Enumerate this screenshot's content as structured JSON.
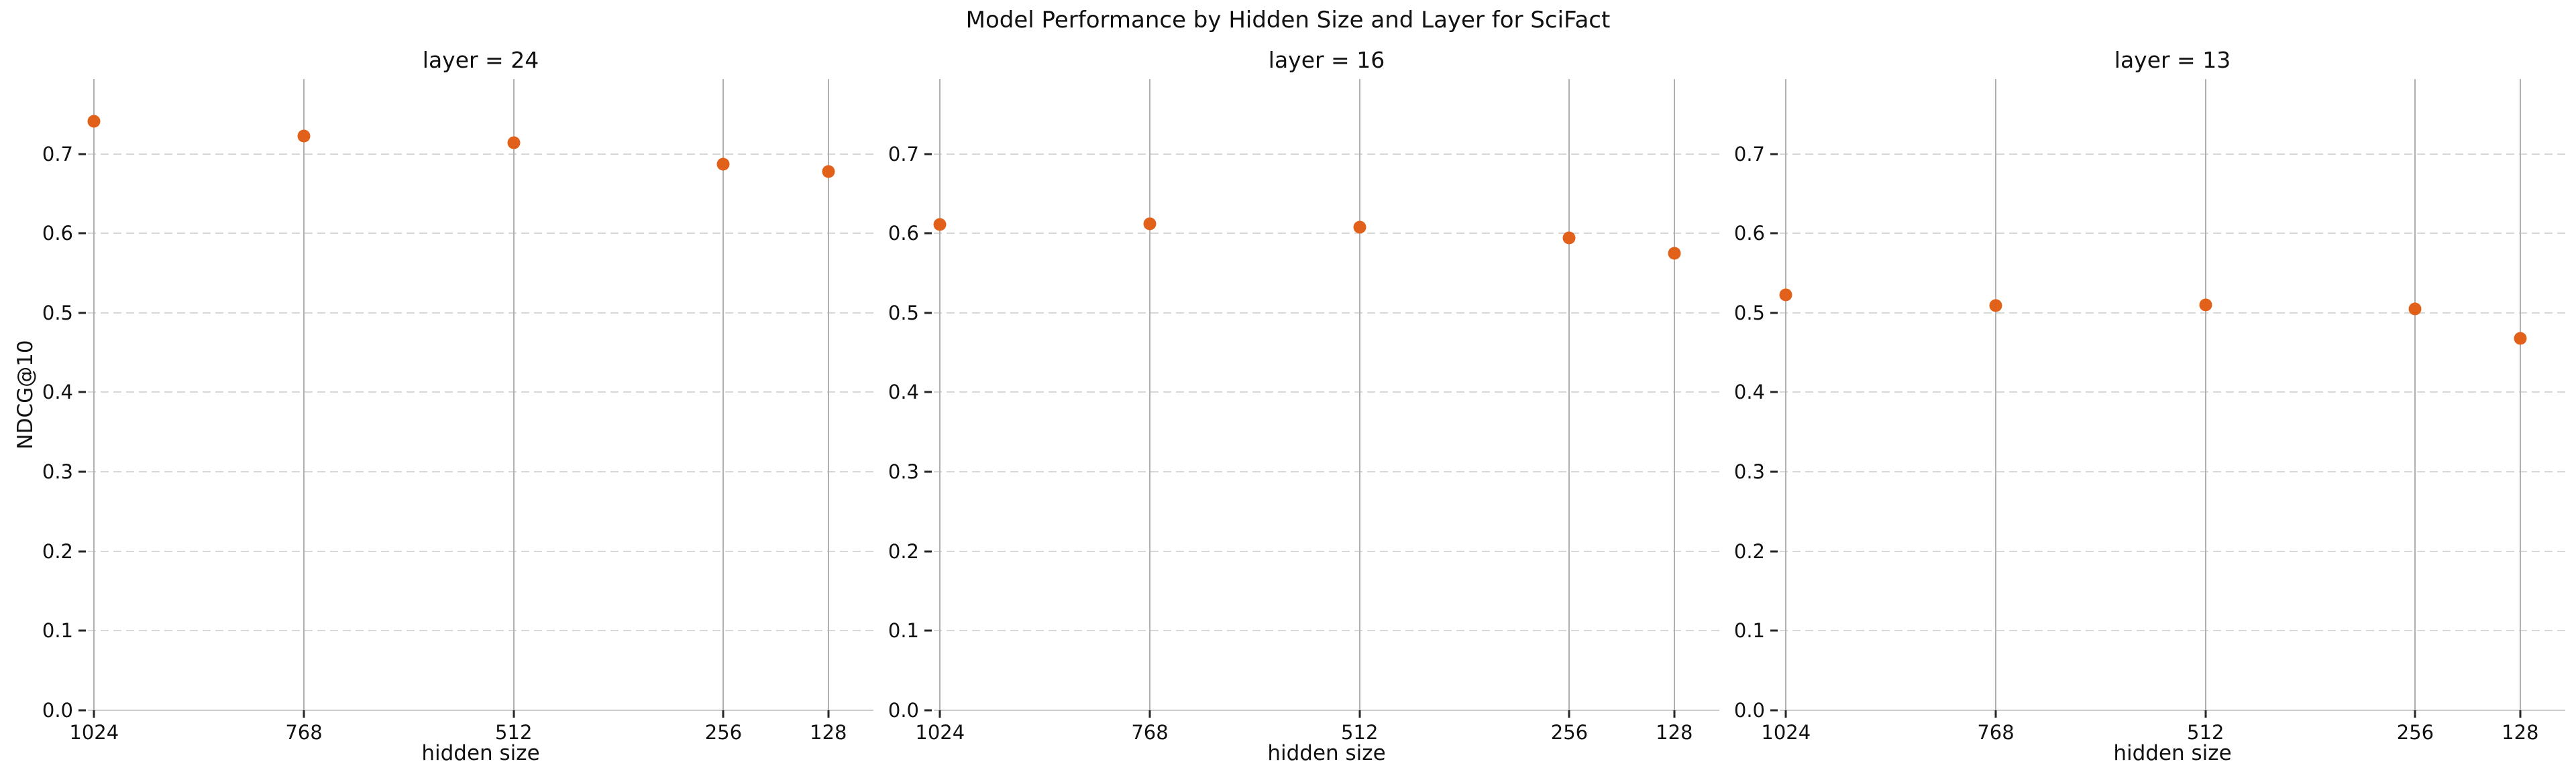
{
  "chart_data": {
    "type": "scatter",
    "title": "Model Performance by Hidden Size and Layer for SciFact",
    "xlabel": "hidden size",
    "ylabel": "NDCG@10",
    "facet_variable": "layer",
    "x": [
      1024,
      768,
      512,
      256,
      128
    ],
    "x_tick_labels": [
      "1024",
      "768",
      "512",
      "256",
      "128"
    ],
    "y_tick_labels": [
      "0.0",
      "0.1",
      "0.2",
      "0.3",
      "0.4",
      "0.5",
      "0.6",
      "0.7"
    ],
    "y_ticks": [
      0.0,
      0.1,
      0.2,
      0.3,
      0.4,
      0.5,
      0.6,
      0.7
    ],
    "xlim": [
      1031.6,
      73.0
    ],
    "ylim": [
      0.0,
      0.794
    ],
    "x_axis_inverted": true,
    "legend": "none",
    "grid": {
      "vertical": "solid",
      "horizontal": "dashed"
    },
    "marker_color": "#e2611a",
    "facets": [
      {
        "title": "layer = 24",
        "layer": 24,
        "values": [
          0.741,
          0.722,
          0.714,
          0.687,
          0.678
        ]
      },
      {
        "title": "layer = 16",
        "layer": 16,
        "values": [
          0.611,
          0.612,
          0.608,
          0.594,
          0.575
        ]
      },
      {
        "title": "layer = 13",
        "layer": 13,
        "values": [
          0.523,
          0.509,
          0.51,
          0.505,
          0.468
        ]
      }
    ]
  },
  "colors": {
    "marker": "#e2611a",
    "vertical_grid": "#b0b0b0",
    "horizontal_grid": "#d8d8d8",
    "axis_line": "#cccccc",
    "tick_mark": "#262626",
    "text": "#111111",
    "background": "#ffffff"
  }
}
